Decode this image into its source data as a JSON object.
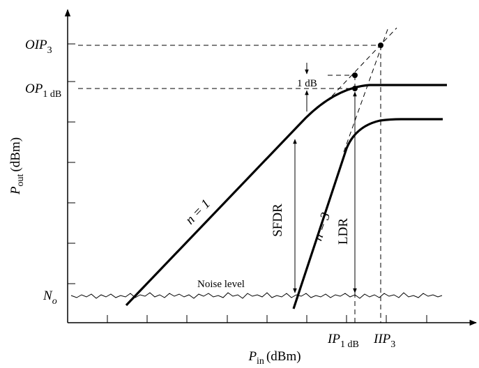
{
  "axes": {
    "x_label_main": "P",
    "x_label_sub": "in",
    "x_label_unit": "(dBm)",
    "y_label_main": "P",
    "y_label_sub": "out",
    "y_label_unit": "(dBm)"
  },
  "levels": {
    "oip3_main": "OIP",
    "oip3_sub": "3",
    "op1db_main": "OP",
    "op1db_sub": "1 dB",
    "noise_floor_main": "N",
    "noise_floor_sub": "o"
  },
  "x_markers": {
    "ip1db_main": "IP",
    "ip1db_sub": "1 dB",
    "iip3_main": "IIP",
    "iip3_sub": "3"
  },
  "annotations": {
    "one_db": "1 dB",
    "noise_level": "Noise level",
    "slope_fundamental": "n = 1",
    "slope_third_order": "n = 3",
    "sfdr": "SFDR",
    "ldr": "LDR"
  },
  "colors": {
    "ink": "#000000",
    "background": "#ffffff"
  }
}
